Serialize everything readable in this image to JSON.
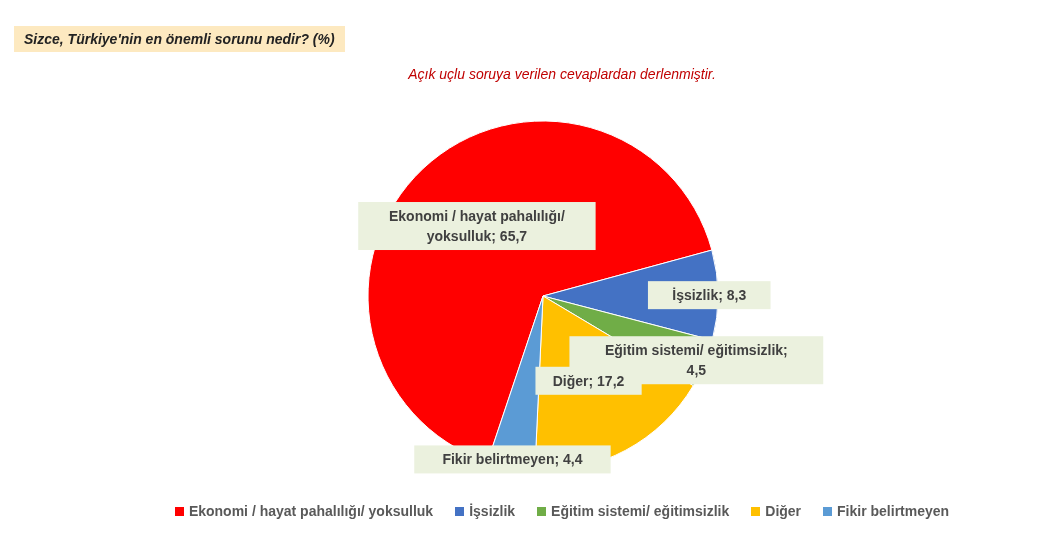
{
  "chart_data": {
    "type": "pie",
    "title": "Sizce, Türkiye'nin en önemli sorunu nedir? (%)",
    "subtitle": "Açık uçlu soruya verilen cevaplardan derlenmiştir.",
    "categories": [
      "Ekonomi / hayat pahalılığı/ yoksulluk",
      "İşsizlik",
      "Eğitim sistemi/ eğitimsizlik",
      "Diğer",
      "Fikir belirtmeyen"
    ],
    "values": [
      65.7,
      8.3,
      4.5,
      17.2,
      4.4
    ],
    "value_labels": [
      "Ekonomi / hayat pahalılığı/ yoksulluk; 65,7",
      "İşsizlik; 8,3",
      "Eğitim sistemi/ eğitimsizlik; 4,5",
      "Diğer; 17,2",
      "Fikir belirtmeyen; 4,4"
    ],
    "colors": [
      "#ff0000",
      "#4472c4",
      "#70ad47",
      "#ffc000",
      "#5b9bd5"
    ],
    "legend": "bottom"
  }
}
